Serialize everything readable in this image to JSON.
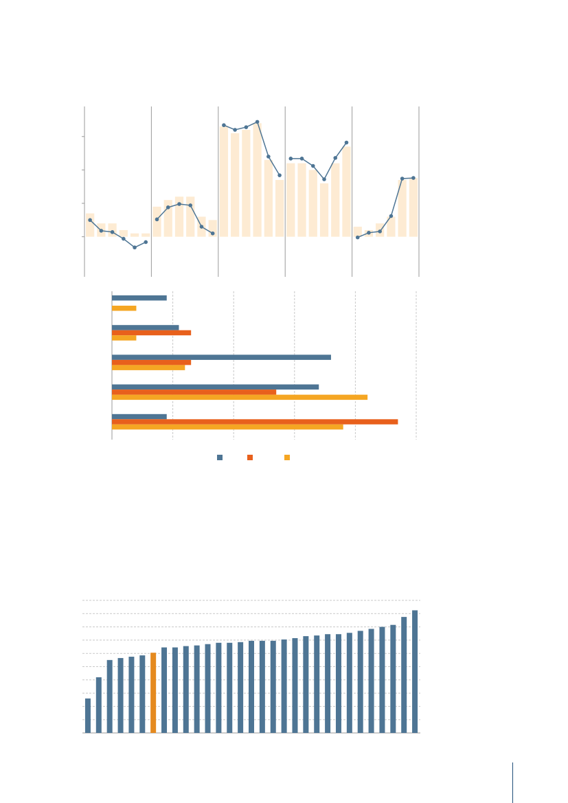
{
  "colors": {
    "blue": "#4e7594",
    "orange": "#e8601c",
    "yellow": "#f5a623",
    "light_fill": "#fdebd3",
    "highlight": "#e58a1f",
    "gridline": "#c8c8c8",
    "axis": "#9a9a9a",
    "page_rule": "#1f4e79"
  },
  "chart_data": [
    {
      "type": "line",
      "overlay": "bar",
      "groups": 5,
      "series": [
        {
          "values": [
            0.25,
            0.09,
            0.07,
            -0.03,
            -0.16,
            -0.08,
            0.26,
            0.44,
            0.49,
            0.47,
            0.15,
            0.05,
            1.67,
            1.6,
            1.64,
            1.72,
            1.2,
            0.92,
            1.17,
            1.17,
            1.06,
            0.86,
            1.18,
            1.41,
            -0.01,
            0.06,
            0.08,
            0.31,
            0.87,
            0.88
          ]
        }
      ],
      "bar_values": [
        0.35,
        0.2,
        0.2,
        0.1,
        0.05,
        0.05,
        0.45,
        0.55,
        0.6,
        0.6,
        0.3,
        0.25,
        1.65,
        1.55,
        1.6,
        1.7,
        1.15,
        0.85,
        1.1,
        1.1,
        1.0,
        0.8,
        1.1,
        1.35,
        0.15,
        0.1,
        0.2,
        0.3,
        0.85,
        0.88
      ],
      "ylim": [
        -0.6,
        1.95
      ],
      "grid": false
    },
    {
      "type": "bar",
      "orientation": "horizontal",
      "categories_count": 5,
      "series": [
        {
          "color": "blue",
          "values": [
            0.9,
            1.1,
            3.6,
            3.4,
            0.9
          ]
        },
        {
          "color": "orange",
          "values": [
            0.0,
            1.3,
            1.3,
            2.7,
            4.7
          ]
        },
        {
          "color": "yellow",
          "values": [
            0.4,
            0.4,
            1.2,
            4.2,
            3.8
          ]
        }
      ],
      "xlim": [
        0,
        5
      ],
      "grid": true,
      "legend": "bottom"
    },
    {
      "type": "bar",
      "values": [
        2.6,
        4.2,
        5.5,
        5.65,
        5.75,
        5.85,
        6.05,
        6.45,
        6.45,
        6.55,
        6.6,
        6.7,
        6.8,
        6.8,
        6.85,
        6.95,
        6.95,
        6.95,
        7.05,
        7.15,
        7.3,
        7.35,
        7.45,
        7.45,
        7.55,
        7.7,
        7.85,
        8.0,
        8.15,
        8.75,
        9.25
      ],
      "highlight_index": 6,
      "ylim": [
        0,
        10
      ],
      "grid": true
    }
  ]
}
